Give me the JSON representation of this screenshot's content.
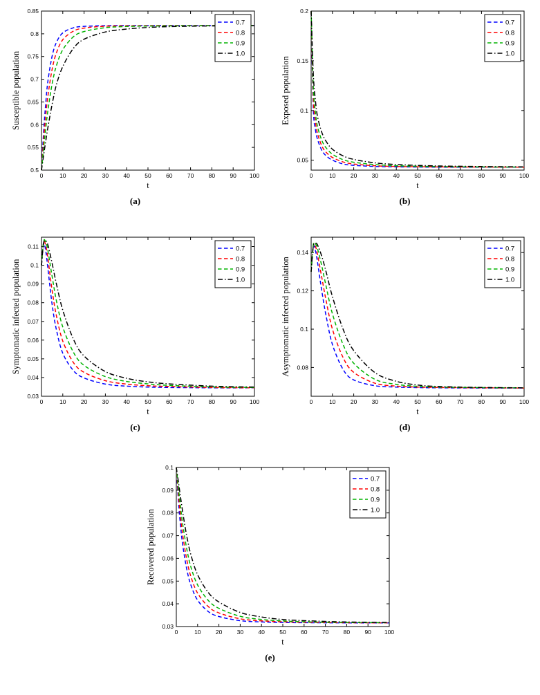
{
  "page": {
    "background": "#ffffff"
  },
  "legend_labels": [
    "0.7",
    "0.8",
    "0.9",
    "1.0"
  ],
  "series_colors": {
    "0.7": "#0000ff",
    "0.8": "#ff0000",
    "0.9": "#00b300",
    "1.0": "#000000"
  },
  "chart_data": [
    {
      "id": "a",
      "type": "line",
      "caption": "(a)",
      "ylabel": "Susceptible population",
      "xlabel": "t",
      "xlim": [
        0,
        100
      ],
      "ylim": [
        0.5,
        0.85
      ],
      "xticks": [
        0,
        10,
        20,
        30,
        40,
        50,
        60,
        70,
        80,
        90,
        100
      ],
      "yticks": [
        0.5,
        0.55,
        0.6,
        0.65,
        0.7,
        0.75,
        0.8,
        0.85
      ],
      "legend_position": "top-right",
      "x": [
        0,
        1,
        2,
        3,
        5,
        7,
        10,
        15,
        20,
        30,
        40,
        50,
        60,
        80,
        100
      ],
      "series": [
        {
          "name": "0.7",
          "color": "#0000ff",
          "style": "dashed",
          "values": [
            0.5,
            0.585,
            0.648,
            0.695,
            0.751,
            0.781,
            0.802,
            0.8132,
            0.8163,
            0.8177,
            0.818,
            0.818,
            0.818,
            0.818,
            0.818
          ]
        },
        {
          "name": "0.8",
          "color": "#ff0000",
          "style": "dashed",
          "values": [
            0.5,
            0.566,
            0.62,
            0.662,
            0.722,
            0.758,
            0.787,
            0.8058,
            0.8125,
            0.8166,
            0.8175,
            0.8178,
            0.818,
            0.818,
            0.818
          ]
        },
        {
          "name": "0.9",
          "color": "#00b300",
          "style": "dashed",
          "values": [
            0.5,
            0.549,
            0.592,
            0.63,
            0.69,
            0.73,
            0.765,
            0.7935,
            0.805,
            0.8135,
            0.816,
            0.817,
            0.8175,
            0.8179,
            0.818
          ]
        },
        {
          "name": "1.0",
          "color": "#000000",
          "style": "dashdot",
          "values": [
            0.5,
            0.533,
            0.564,
            0.593,
            0.645,
            0.688,
            0.728,
            0.768,
            0.788,
            0.804,
            0.8105,
            0.814,
            0.8158,
            0.8173,
            0.8178
          ]
        }
      ]
    },
    {
      "id": "b",
      "type": "line",
      "caption": "(b)",
      "ylabel": "Exposed population",
      "xlabel": "t",
      "xlim": [
        0,
        100
      ],
      "ylim": [
        0.04,
        0.2
      ],
      "xticks": [
        0,
        10,
        20,
        30,
        40,
        50,
        60,
        70,
        80,
        90,
        100
      ],
      "yticks": [
        0.05,
        0.1,
        0.15,
        0.2
      ],
      "legend_position": "top-right",
      "x": [
        0,
        1,
        2,
        3,
        5,
        7,
        10,
        15,
        20,
        30,
        40,
        50,
        60,
        80,
        100
      ],
      "series": [
        {
          "name": "0.7",
          "color": "#0000ff",
          "style": "dashed",
          "values": [
            0.2,
            0.103,
            0.081,
            0.071,
            0.06,
            0.0545,
            0.05,
            0.0462,
            0.0448,
            0.0437,
            0.0433,
            0.0431,
            0.043,
            0.043,
            0.043
          ]
        },
        {
          "name": "0.8",
          "color": "#ff0000",
          "style": "dashed",
          "values": [
            0.2,
            0.113,
            0.089,
            0.077,
            0.0645,
            0.058,
            0.0527,
            0.0482,
            0.0461,
            0.0444,
            0.0437,
            0.0434,
            0.0432,
            0.0431,
            0.043
          ]
        },
        {
          "name": "0.9",
          "color": "#00b300",
          "style": "dashed",
          "values": [
            0.2,
            0.124,
            0.098,
            0.084,
            0.07,
            0.0625,
            0.056,
            0.0505,
            0.0479,
            0.0455,
            0.0444,
            0.0439,
            0.0436,
            0.0432,
            0.0431
          ]
        },
        {
          "name": "1.0",
          "color": "#000000",
          "style": "dashdot",
          "values": [
            0.2,
            0.137,
            0.11,
            0.094,
            0.078,
            0.069,
            0.061,
            0.0543,
            0.0508,
            0.0473,
            0.0456,
            0.0447,
            0.0442,
            0.0436,
            0.0433
          ]
        }
      ]
    },
    {
      "id": "c",
      "type": "line",
      "caption": "(c)",
      "ylabel": "Symptomatic infected population",
      "xlabel": "t",
      "xlim": [
        0,
        100
      ],
      "ylim": [
        0.03,
        0.115
      ],
      "xticks": [
        0,
        10,
        20,
        30,
        40,
        50,
        60,
        70,
        80,
        90,
        100
      ],
      "yticks": [
        0.03,
        0.04,
        0.05,
        0.06,
        0.07,
        0.08,
        0.09,
        0.1,
        0.11
      ],
      "legend_position": "top-right",
      "x": [
        0,
        1,
        2,
        3,
        5,
        7,
        10,
        15,
        20,
        30,
        40,
        50,
        60,
        80,
        100
      ],
      "series": [
        {
          "name": "0.7",
          "color": "#0000ff",
          "style": "dashed",
          "values": [
            0.1,
            0.1115,
            0.1075,
            0.0985,
            0.079,
            0.0655,
            0.053,
            0.0437,
            0.0398,
            0.0365,
            0.0354,
            0.0349,
            0.0347,
            0.0345,
            0.0345
          ]
        },
        {
          "name": "0.8",
          "color": "#ff0000",
          "style": "dashed",
          "values": [
            0.1,
            0.1125,
            0.1105,
            0.104,
            0.0865,
            0.073,
            0.0595,
            0.048,
            0.0428,
            0.0383,
            0.0365,
            0.0356,
            0.0352,
            0.0347,
            0.0346
          ]
        },
        {
          "name": "0.9",
          "color": "#00b300",
          "style": "dashed",
          "values": [
            0.1,
            0.1128,
            0.1122,
            0.108,
            0.094,
            0.081,
            0.067,
            0.0535,
            0.0465,
            0.0405,
            0.0379,
            0.0366,
            0.0358,
            0.035,
            0.0347
          ]
        },
        {
          "name": "1.0",
          "color": "#000000",
          "style": "dashdot",
          "values": [
            0.1,
            0.112,
            0.113,
            0.111,
            0.101,
            0.09,
            0.076,
            0.0605,
            0.0515,
            0.0432,
            0.0396,
            0.0377,
            0.0366,
            0.0354,
            0.0349
          ]
        }
      ]
    },
    {
      "id": "d",
      "type": "line",
      "caption": "(d)",
      "ylabel": "Asymptomatic infected population",
      "xlabel": "t",
      "xlim": [
        0,
        100
      ],
      "ylim": [
        0.065,
        0.148
      ],
      "xticks": [
        0,
        10,
        20,
        30,
        40,
        50,
        60,
        70,
        80,
        90,
        100
      ],
      "yticks": [
        0.08,
        0.1,
        0.12,
        0.14
      ],
      "legend_position": "top-right",
      "x": [
        0,
        1,
        2,
        3,
        5,
        7,
        10,
        15,
        20,
        30,
        40,
        50,
        60,
        80,
        100
      ],
      "series": [
        {
          "name": "0.7",
          "color": "#0000ff",
          "style": "dashed",
          "values": [
            0.13,
            0.143,
            0.141,
            0.135,
            0.12,
            0.107,
            0.092,
            0.079,
            0.0735,
            0.0705,
            0.0698,
            0.0695,
            0.0694,
            0.0693,
            0.0693
          ]
        },
        {
          "name": "0.8",
          "color": "#ff0000",
          "style": "dashed",
          "values": [
            0.13,
            0.1438,
            0.1432,
            0.139,
            0.127,
            0.115,
            0.1,
            0.0852,
            0.0775,
            0.0718,
            0.0703,
            0.0698,
            0.0696,
            0.0694,
            0.0693
          ]
        },
        {
          "name": "0.9",
          "color": "#00b300",
          "style": "dashed",
          "values": [
            0.13,
            0.144,
            0.1445,
            0.142,
            0.133,
            0.1225,
            0.108,
            0.092,
            0.0822,
            0.0738,
            0.0712,
            0.0702,
            0.0698,
            0.0695,
            0.0694
          ]
        },
        {
          "name": "1.0",
          "color": "#000000",
          "style": "dashdot",
          "values": [
            0.13,
            0.1432,
            0.1448,
            0.144,
            0.138,
            0.13,
            0.117,
            0.1,
            0.0888,
            0.0773,
            0.0728,
            0.0709,
            0.0701,
            0.0696,
            0.0694
          ]
        }
      ]
    },
    {
      "id": "e",
      "type": "line",
      "caption": "(e)",
      "ylabel": "Recovered population",
      "xlabel": "t",
      "xlim": [
        0,
        100
      ],
      "ylim": [
        0.03,
        0.1
      ],
      "xticks": [
        0,
        10,
        20,
        30,
        40,
        50,
        60,
        70,
        80,
        90,
        100
      ],
      "yticks": [
        0.03,
        0.04,
        0.05,
        0.06,
        0.07,
        0.08,
        0.09,
        0.1
      ],
      "legend_position": "top-right",
      "x": [
        0,
        1,
        2,
        3,
        5,
        7,
        10,
        15,
        20,
        30,
        40,
        50,
        60,
        80,
        100
      ],
      "series": [
        {
          "name": "0.7",
          "color": "#0000ff",
          "style": "dashed",
          "values": [
            0.1,
            0.085,
            0.074,
            0.066,
            0.0548,
            0.0478,
            0.0416,
            0.0366,
            0.0344,
            0.0326,
            0.032,
            0.0318,
            0.0317,
            0.0316,
            0.0316
          ]
        },
        {
          "name": "0.8",
          "color": "#ff0000",
          "style": "dashed",
          "values": [
            0.1,
            0.088,
            0.0783,
            0.0705,
            0.059,
            0.0515,
            0.0447,
            0.0388,
            0.036,
            0.0334,
            0.0325,
            0.0321,
            0.0319,
            0.0317,
            0.0316
          ]
        },
        {
          "name": "0.9",
          "color": "#00b300",
          "style": "dashed",
          "values": [
            0.1,
            0.0908,
            0.0825,
            0.0752,
            0.0637,
            0.0557,
            0.0483,
            0.0415,
            0.038,
            0.0345,
            0.0331,
            0.0325,
            0.0321,
            0.0318,
            0.0317
          ]
        },
        {
          "name": "1.0",
          "color": "#000000",
          "style": "dashdot",
          "values": [
            0.1,
            0.0935,
            0.0868,
            0.0805,
            0.0693,
            0.061,
            0.0528,
            0.045,
            0.0408,
            0.0362,
            0.0342,
            0.0331,
            0.0326,
            0.032,
            0.0318
          ]
        }
      ]
    }
  ]
}
